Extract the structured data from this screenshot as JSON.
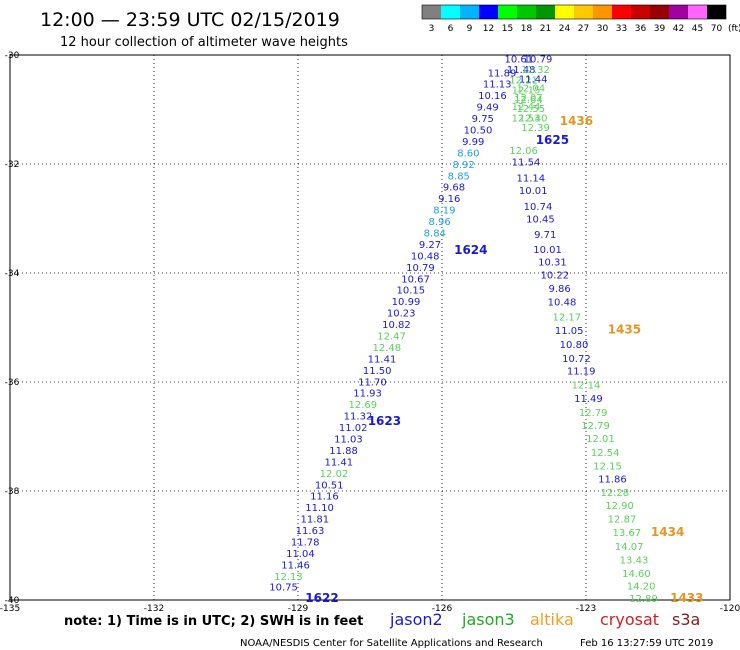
{
  "header": {
    "title": "12:00 — 23:59 UTC 02/15/2019",
    "subtitle": "12 hour collection of altimeter wave heights"
  },
  "colorbar": {
    "unit_label": "(ft)",
    "levels": [
      {
        "label": "3",
        "color": "#808080"
      },
      {
        "label": "6",
        "color": "#00ffff"
      },
      {
        "label": "9",
        "color": "#00b4ff"
      },
      {
        "label": "12",
        "color": "#0000ff"
      },
      {
        "label": "15",
        "color": "#00ff00"
      },
      {
        "label": "18",
        "color": "#00c800"
      },
      {
        "label": "21",
        "color": "#009600"
      },
      {
        "label": "24",
        "color": "#ffff00"
      },
      {
        "label": "27",
        "color": "#ffc800"
      },
      {
        "label": "30",
        "color": "#ff9600"
      },
      {
        "label": "33",
        "color": "#ff0000"
      },
      {
        "label": "36",
        "color": "#c80000"
      },
      {
        "label": "39",
        "color": "#960000"
      },
      {
        "label": "42",
        "color": "#a000a0"
      },
      {
        "label": "45",
        "color": "#ff64ff"
      },
      {
        "label": "70",
        "color": "#000000"
      }
    ]
  },
  "footer": {
    "note": "note: 1) Time is in UTC; 2) SWH is in feet",
    "credit": "NOAA/NESDIS Center for Satellite Applications and Research",
    "timestamp": "Feb 16 13:27:59 UTC 2019",
    "satellites": [
      {
        "name": "jason2",
        "color": "#1a1ad6"
      },
      {
        "name": "jason3",
        "color": "#22aa22"
      },
      {
        "name": "altika",
        "color": "#f0a020"
      },
      {
        "name": "cryosat",
        "color": "#d42020"
      },
      {
        "name": "s3a",
        "color": "#8a1a1a"
      }
    ]
  },
  "colors": {
    "dark_blue": "#1a1ad6",
    "light_blue": "#1ea0e6",
    "green": "#5ad25a",
    "orange": "#e6961e"
  },
  "chart_data": {
    "type": "scatter",
    "xlim": [
      -135,
      -120
    ],
    "ylim": [
      -40,
      -30
    ],
    "xticks": [
      {
        "value": -135,
        "label": "-135"
      },
      {
        "value": -132,
        "label": "-132"
      },
      {
        "value": -129,
        "label": "-129"
      },
      {
        "value": -126,
        "label": "-126"
      },
      {
        "value": -123,
        "label": "-123"
      },
      {
        "value": -120,
        "label": "-120"
      }
    ],
    "yticks": [
      {
        "value": -30,
        "label": "-30"
      },
      {
        "value": -32,
        "label": "-32"
      },
      {
        "value": -34,
        "label": "-34"
      },
      {
        "value": -36,
        "label": "-36"
      },
      {
        "value": -38,
        "label": "-38"
      },
      {
        "value": -40,
        "label": "-40"
      }
    ],
    "grid": true,
    "tracks": [
      {
        "points": [
          {
            "lon": -129.3,
            "lat": -39.83,
            "v": "10.75",
            "c": "dark_blue"
          },
          {
            "lon": -129.2,
            "lat": -39.63,
            "v": "12.13",
            "c": "green"
          },
          {
            "lon": -129.05,
            "lat": -39.42,
            "v": "11.46",
            "c": "dark_blue"
          },
          {
            "lon": -128.95,
            "lat": -39.21,
            "v": "11.04",
            "c": "dark_blue"
          },
          {
            "lon": -128.85,
            "lat": -39.0,
            "v": "11.78",
            "c": "dark_blue"
          },
          {
            "lon": -128.75,
            "lat": -38.79,
            "v": "11.63",
            "c": "dark_blue"
          },
          {
            "lon": -128.65,
            "lat": -38.58,
            "v": "11.81",
            "c": "dark_blue"
          },
          {
            "lon": -128.55,
            "lat": -38.37,
            "v": "11.10",
            "c": "dark_blue"
          },
          {
            "lon": -128.45,
            "lat": -38.16,
            "v": "11.16",
            "c": "dark_blue"
          },
          {
            "lon": -128.35,
            "lat": -37.95,
            "v": "10.51",
            "c": "dark_blue"
          },
          {
            "lon": -128.25,
            "lat": -37.74,
            "v": "12.02",
            "c": "green"
          },
          {
            "lon": -128.15,
            "lat": -37.53,
            "v": "11.41",
            "c": "dark_blue"
          },
          {
            "lon": -128.05,
            "lat": -37.32,
            "v": "11.88",
            "c": "dark_blue"
          },
          {
            "lon": -127.95,
            "lat": -37.11,
            "v": "11.03",
            "c": "dark_blue"
          },
          {
            "lon": -127.85,
            "lat": -36.9,
            "v": "11.02",
            "c": "dark_blue"
          },
          {
            "lon": -127.75,
            "lat": -36.69,
            "v": "11.32",
            "c": "dark_blue"
          },
          {
            "lon": -127.65,
            "lat": -36.48,
            "v": "12.69",
            "c": "green"
          },
          {
            "lon": -127.55,
            "lat": -36.27,
            "v": "11.93",
            "c": "dark_blue"
          },
          {
            "lon": -127.45,
            "lat": -36.06,
            "v": "11.70",
            "c": "dark_blue"
          },
          {
            "lon": -127.35,
            "lat": -35.85,
            "v": "11.50",
            "c": "dark_blue"
          },
          {
            "lon": -127.25,
            "lat": -35.64,
            "v": "11.41",
            "c": "dark_blue"
          },
          {
            "lon": -127.15,
            "lat": -35.43,
            "v": "12.48",
            "c": "green"
          },
          {
            "lon": -127.05,
            "lat": -35.22,
            "v": "12.47",
            "c": "green"
          },
          {
            "lon": -126.95,
            "lat": -35.01,
            "v": "10.82",
            "c": "dark_blue"
          },
          {
            "lon": -126.85,
            "lat": -34.8,
            "v": "10.23",
            "c": "dark_blue"
          },
          {
            "lon": -126.75,
            "lat": -34.59,
            "v": "10.99",
            "c": "dark_blue"
          },
          {
            "lon": -126.65,
            "lat": -34.38,
            "v": "10.15",
            "c": "dark_blue"
          },
          {
            "lon": -126.55,
            "lat": -34.17,
            "v": "10.67",
            "c": "dark_blue"
          },
          {
            "lon": -126.45,
            "lat": -33.96,
            "v": "10.79",
            "c": "dark_blue"
          },
          {
            "lon": -126.35,
            "lat": -33.75,
            "v": "10.48",
            "c": "dark_blue"
          },
          {
            "lon": -126.25,
            "lat": -33.54,
            "v": "9.27",
            "c": "dark_blue"
          },
          {
            "lon": -126.15,
            "lat": -33.33,
            "v": "8.84",
            "c": "light_blue"
          },
          {
            "lon": -126.05,
            "lat": -33.12,
            "v": "8.96",
            "c": "light_blue"
          },
          {
            "lon": -125.95,
            "lat": -32.91,
            "v": "8.19",
            "c": "light_blue"
          },
          {
            "lon": -125.85,
            "lat": -32.7,
            "v": "9.16",
            "c": "dark_blue"
          },
          {
            "lon": -125.75,
            "lat": -32.49,
            "v": "9.68",
            "c": "dark_blue"
          },
          {
            "lon": -125.65,
            "lat": -32.28,
            "v": "8.85",
            "c": "light_blue"
          },
          {
            "lon": -125.55,
            "lat": -32.07,
            "v": "8.92",
            "c": "light_blue"
          },
          {
            "lon": -125.45,
            "lat": -31.86,
            "v": "8.60",
            "c": "light_blue"
          },
          {
            "lon": -125.35,
            "lat": -31.65,
            "v": "9.99",
            "c": "dark_blue"
          },
          {
            "lon": -125.25,
            "lat": -31.44,
            "v": "10.50",
            "c": "dark_blue"
          },
          {
            "lon": -125.15,
            "lat": -31.23,
            "v": "9.75",
            "c": "dark_blue"
          },
          {
            "lon": -125.05,
            "lat": -31.02,
            "v": "9.49",
            "c": "dark_blue"
          },
          {
            "lon": -124.95,
            "lat": -30.81,
            "v": "10.16",
            "c": "dark_blue"
          },
          {
            "lon": -124.85,
            "lat": -30.6,
            "v": "11.13",
            "c": "dark_blue"
          },
          {
            "lon": -124.75,
            "lat": -30.39,
            "v": "11.89",
            "c": "dark_blue"
          }
        ]
      },
      {
        "points": [
          {
            "lon": -124.4,
            "lat": -30.14,
            "v": "10.61",
            "c": "dark_blue"
          },
          {
            "lon": -124.35,
            "lat": -30.33,
            "v": "11.48",
            "c": "dark_blue"
          },
          {
            "lon": -124.3,
            "lat": -30.52,
            "v": "12.21",
            "c": "green"
          },
          {
            "lon": -124.25,
            "lat": -30.71,
            "v": "12.15",
            "c": "green"
          },
          {
            "lon": -124.2,
            "lat": -30.88,
            "v": "12.64",
            "c": "green"
          },
          {
            "lon": -124.15,
            "lat": -31.05,
            "v": "12.55",
            "c": "green"
          },
          {
            "lon": -124.1,
            "lat": -31.22,
            "v": "12.40",
            "c": "green"
          },
          {
            "lon": -124.05,
            "lat": -31.39,
            "v": "12.39",
            "c": "green"
          }
        ]
      },
      {
        "points": [
          {
            "lon": -124.0,
            "lat": -30.14,
            "v": "10.79",
            "c": "dark_blue"
          },
          {
            "lon": -124.05,
            "lat": -30.33,
            "v": "12.32",
            "c": "green"
          },
          {
            "lon": -124.1,
            "lat": -30.5,
            "v": "11.44",
            "c": "dark_blue"
          },
          {
            "lon": -124.15,
            "lat": -30.67,
            "v": "12.04",
            "c": "green"
          },
          {
            "lon": -124.2,
            "lat": -30.84,
            "v": "12.07",
            "c": "green"
          },
          {
            "lon": -124.25,
            "lat": -31.01,
            "v": "12.44",
            "c": "green"
          },
          {
            "lon": -124.25,
            "lat": -31.22,
            "v": "12.53",
            "c": "green"
          },
          {
            "lon": -124.3,
            "lat": -31.82,
            "v": "12.06",
            "c": "green"
          },
          {
            "lon": -124.25,
            "lat": -32.03,
            "v": "11.54",
            "c": "dark_blue"
          },
          {
            "lon": -124.15,
            "lat": -32.32,
            "v": "11.14",
            "c": "dark_blue"
          },
          {
            "lon": -124.1,
            "lat": -32.55,
            "v": "10.01",
            "c": "dark_blue"
          },
          {
            "lon": -124.0,
            "lat": -32.84,
            "v": "10.74",
            "c": "dark_blue"
          },
          {
            "lon": -123.95,
            "lat": -33.07,
            "v": "10.45",
            "c": "dark_blue"
          },
          {
            "lon": -123.85,
            "lat": -33.36,
            "v": "9.71",
            "c": "dark_blue"
          },
          {
            "lon": -123.8,
            "lat": -33.63,
            "v": "10.01",
            "c": "dark_blue"
          },
          {
            "lon": -123.7,
            "lat": -33.86,
            "v": "10.31",
            "c": "dark_blue"
          },
          {
            "lon": -123.65,
            "lat": -34.1,
            "v": "10.22",
            "c": "dark_blue"
          },
          {
            "lon": -123.55,
            "lat": -34.35,
            "v": "9.86",
            "c": "dark_blue"
          },
          {
            "lon": -123.5,
            "lat": -34.6,
            "v": "10.48",
            "c": "dark_blue"
          },
          {
            "lon": -123.4,
            "lat": -34.87,
            "v": "12.17",
            "c": "green"
          },
          {
            "lon": -123.35,
            "lat": -35.12,
            "v": "11.05",
            "c": "dark_blue"
          },
          {
            "lon": -123.25,
            "lat": -35.38,
            "v": "10.80",
            "c": "dark_blue"
          },
          {
            "lon": -123.2,
            "lat": -35.63,
            "v": "10.72",
            "c": "dark_blue"
          },
          {
            "lon": -123.1,
            "lat": -35.86,
            "v": "11.19",
            "c": "dark_blue"
          },
          {
            "lon": -123.0,
            "lat": -36.12,
            "v": "12.14",
            "c": "green"
          },
          {
            "lon": -122.95,
            "lat": -36.37,
            "v": "11.49",
            "c": "dark_blue"
          },
          {
            "lon": -122.85,
            "lat": -36.62,
            "v": "12.79",
            "c": "green"
          },
          {
            "lon": -122.8,
            "lat": -36.86,
            "v": "12.79",
            "c": "green"
          },
          {
            "lon": -122.7,
            "lat": -37.1,
            "v": "12.01",
            "c": "green"
          },
          {
            "lon": -122.6,
            "lat": -37.36,
            "v": "12.54",
            "c": "green"
          },
          {
            "lon": -122.55,
            "lat": -37.61,
            "v": "12.15",
            "c": "green"
          },
          {
            "lon": -122.45,
            "lat": -37.84,
            "v": "11.86",
            "c": "dark_blue"
          },
          {
            "lon": -122.4,
            "lat": -38.09,
            "v": "12.28",
            "c": "green"
          },
          {
            "lon": -122.3,
            "lat": -38.33,
            "v": "12.90",
            "c": "green"
          },
          {
            "lon": -122.25,
            "lat": -38.58,
            "v": "12.87",
            "c": "green"
          },
          {
            "lon": -122.15,
            "lat": -38.83,
            "v": "13.67",
            "c": "green"
          },
          {
            "lon": -122.1,
            "lat": -39.08,
            "v": "14.07",
            "c": "green"
          },
          {
            "lon": -122.0,
            "lat": -39.33,
            "v": "13.43",
            "c": "green"
          },
          {
            "lon": -121.95,
            "lat": -39.58,
            "v": "14.60",
            "c": "green"
          },
          {
            "lon": -121.85,
            "lat": -39.81,
            "v": "14.20",
            "c": "green"
          },
          {
            "lon": -121.8,
            "lat": -40.04,
            "v": "12.89",
            "c": "green"
          }
        ]
      }
    ],
    "time_labels": [
      {
        "lon": -128.5,
        "lat": -40.04,
        "text": "1622",
        "c": "dark_blue"
      },
      {
        "lon": -127.2,
        "lat": -36.79,
        "text": "1623",
        "c": "dark_blue"
      },
      {
        "lon": -125.4,
        "lat": -33.65,
        "text": "1624",
        "c": "dark_blue"
      },
      {
        "lon": -123.7,
        "lat": -31.63,
        "text": "1625",
        "c": "dark_blue"
      },
      {
        "lon": -123.2,
        "lat": -31.28,
        "text": "1436",
        "c": "orange"
      },
      {
        "lon": -122.2,
        "lat": -35.11,
        "text": "1435",
        "c": "orange"
      },
      {
        "lon": -121.3,
        "lat": -38.83,
        "text": "1434",
        "c": "orange"
      },
      {
        "lon": -120.9,
        "lat": -40.04,
        "text": "1433",
        "c": "orange"
      }
    ]
  }
}
